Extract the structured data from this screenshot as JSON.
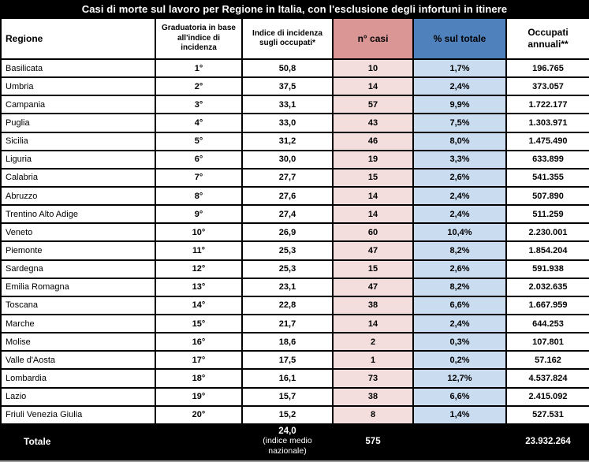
{
  "title": "Casi di morte sul lavoro per Regione in Italia, con l'esclusione degli infortuni in itinere",
  "chart_data": {
    "type": "table",
    "title": "Casi di morte sul lavoro per Regione in Italia, con l'esclusione degli infortuni in itinere",
    "columns": [
      "Regione",
      "Graduatoria in base all'indice di incidenza",
      "Indice di incidenza sugli occupati*",
      "n° casi",
      "% sul totale",
      "Occupati annuali**"
    ],
    "rows": [
      [
        "Basilicata",
        "1°",
        "50,8",
        "10",
        "1,7%",
        "196.765"
      ],
      [
        "Umbria",
        "2°",
        "37,5",
        "14",
        "2,4%",
        "373.057"
      ],
      [
        "Campania",
        "3°",
        "33,1",
        "57",
        "9,9%",
        "1.722.177"
      ],
      [
        "Puglia",
        "4°",
        "33,0",
        "43",
        "7,5%",
        "1.303.971"
      ],
      [
        "Sicilia",
        "5°",
        "31,2",
        "46",
        "8,0%",
        "1.475.490"
      ],
      [
        "Liguria",
        "6°",
        "30,0",
        "19",
        "3,3%",
        "633.899"
      ],
      [
        "Calabria",
        "7°",
        "27,7",
        "15",
        "2,6%",
        "541.355"
      ],
      [
        "Abruzzo",
        "8°",
        "27,6",
        "14",
        "2,4%",
        "507.890"
      ],
      [
        "Trentino Alto Adige",
        "9°",
        "27,4",
        "14",
        "2,4%",
        "511.259"
      ],
      [
        "Veneto",
        "10°",
        "26,9",
        "60",
        "10,4%",
        "2.230.001"
      ],
      [
        "Piemonte",
        "11°",
        "25,3",
        "47",
        "8,2%",
        "1.854.204"
      ],
      [
        "Sardegna",
        "12°",
        "25,3",
        "15",
        "2,6%",
        "591.938"
      ],
      [
        "Emilia Romagna",
        "13°",
        "23,1",
        "47",
        "8,2%",
        "2.032.635"
      ],
      [
        "Toscana",
        "14°",
        "22,8",
        "38",
        "6,6%",
        "1.667.959"
      ],
      [
        "Marche",
        "15°",
        "21,7",
        "14",
        "2,4%",
        "644.253"
      ],
      [
        "Molise",
        "16°",
        "18,6",
        "2",
        "0,3%",
        "107.801"
      ],
      [
        "Valle d'Aosta",
        "17°",
        "17,5",
        "1",
        "0,2%",
        "57.162"
      ],
      [
        "Lombardia",
        "18°",
        "16,1",
        "73",
        "12,7%",
        "4.537.824"
      ],
      [
        "Lazio",
        "19°",
        "15,7",
        "38",
        "6,6%",
        "2.415.092"
      ],
      [
        "Friuli Venezia Giulia",
        "20°",
        "15,2",
        "8",
        "1,4%",
        "527.531"
      ]
    ],
    "total_row": {
      "label": "Totale",
      "indice": "24,0",
      "indice_note": "(indice medio nazionale)",
      "casi": "575",
      "occupati": "23.932.264"
    }
  },
  "colors": {
    "header_casi_bg": "#d99694",
    "header_perc_bg": "#4f81bd",
    "cell_casi_bg": "#f3dedd",
    "cell_perc_bg": "#cadcf0",
    "frame_bg": "#000000",
    "inverse_text": "#ffffff"
  }
}
